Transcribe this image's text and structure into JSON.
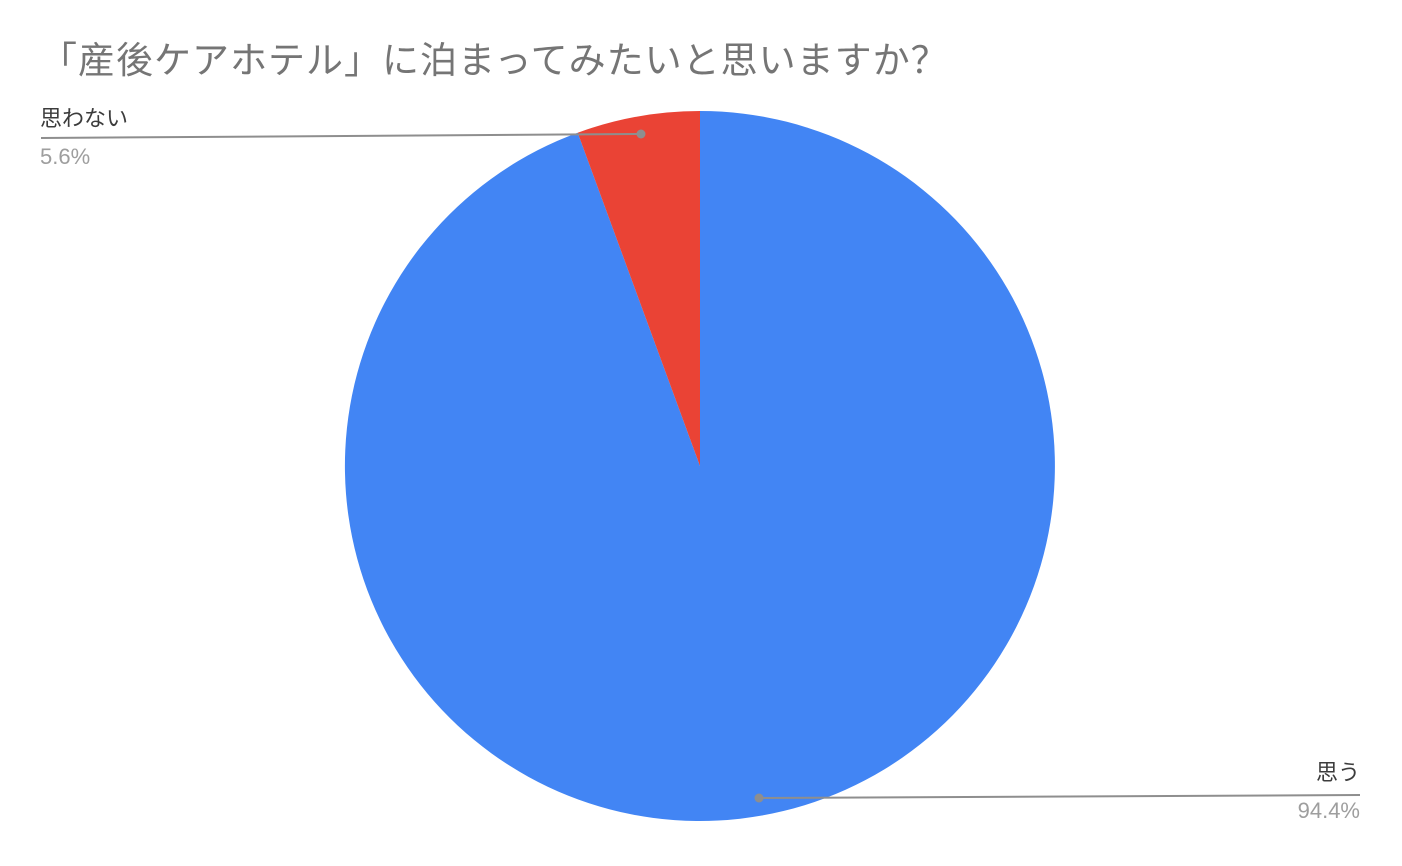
{
  "chart_data": {
    "type": "pie",
    "title": "「産後ケアホテル」に泊まってみたいと思いますか？",
    "categories": [
      "思う",
      "思わない"
    ],
    "values": [
      94.4,
      5.6
    ],
    "percent_labels": [
      "94.4%",
      "5.6%"
    ],
    "colors": [
      "#4285f4",
      "#ea4335"
    ],
    "title_color": "#757575",
    "label_color": "#3c3c3c",
    "percent_color": "#9e9e9e",
    "leader_color": "#8e8e8e",
    "background": "#ffffff",
    "legend_position": "labeled",
    "start_angle": 0,
    "direction": "clockwise"
  }
}
